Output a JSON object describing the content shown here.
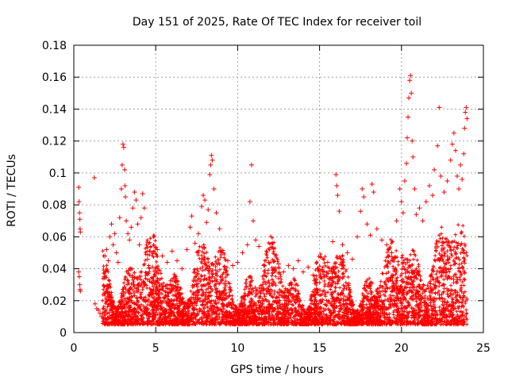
{
  "chart_data": {
    "type": "scatter",
    "title": "Day 151 of 2025, Rate Of TEC Index for receiver toil",
    "xlabel": "GPS time / hours",
    "ylabel": "ROTI / TECUs",
    "xlim": [
      0,
      25
    ],
    "ylim": [
      0,
      0.18
    ],
    "xticks": [
      0,
      5,
      10,
      15,
      20,
      25
    ],
    "xtick_labels": [
      "0",
      "5",
      "10",
      "15",
      "20",
      "25"
    ],
    "yticks": [
      0,
      0.02,
      0.04,
      0.06,
      0.08,
      0.1,
      0.12,
      0.14,
      0.16,
      0.18
    ],
    "ytick_labels": [
      "0",
      "0.02",
      "0.04",
      "0.06",
      "0.08",
      "0.1",
      "0.12",
      "0.14",
      "0.16",
      "0.18"
    ],
    "grid": true,
    "marker": "+",
    "color": "#ff0000",
    "series": [
      {
        "name": "ROTI",
        "points": [
          [
            0.3,
            0.091
          ],
          [
            0.32,
            0.082
          ],
          [
            0.35,
            0.075
          ],
          [
            0.37,
            0.071
          ],
          [
            0.38,
            0.065
          ],
          [
            0.4,
            0.063
          ],
          [
            0.3,
            0.038
          ],
          [
            0.33,
            0.035
          ],
          [
            0.36,
            0.03
          ],
          [
            0.38,
            0.027
          ],
          [
            0.4,
            0.026
          ],
          [
            1.25,
            0.097
          ],
          [
            1.3,
            0.018
          ],
          [
            1.4,
            0.015
          ],
          [
            1.5,
            0.014
          ],
          [
            1.6,
            0.012
          ],
          [
            1.7,
            0.01
          ],
          [
            1.8,
            0.009
          ],
          [
            1.85,
            0.035
          ],
          [
            1.9,
            0.048
          ],
          [
            2.0,
            0.052
          ],
          [
            2.1,
            0.045
          ],
          [
            2.2,
            0.06
          ],
          [
            2.3,
            0.068
          ],
          [
            2.4,
            0.055
          ],
          [
            2.5,
            0.062
          ],
          [
            2.6,
            0.05
          ],
          [
            2.7,
            0.044
          ],
          [
            2.8,
            0.072
          ],
          [
            2.9,
            0.09
          ],
          [
            2.95,
            0.105
          ],
          [
            3.0,
            0.118
          ],
          [
            3.05,
            0.116
          ],
          [
            3.1,
            0.102
          ],
          [
            3.12,
            0.092
          ],
          [
            3.15,
            0.085
          ],
          [
            3.2,
            0.07
          ],
          [
            3.3,
            0.062
          ],
          [
            3.4,
            0.058
          ],
          [
            3.5,
            0.066
          ],
          [
            3.6,
            0.078
          ],
          [
            3.7,
            0.088
          ],
          [
            3.8,
            0.083
          ],
          [
            3.9,
            0.068
          ],
          [
            4.0,
            0.055
          ],
          [
            4.1,
            0.072
          ],
          [
            4.2,
            0.087
          ],
          [
            4.3,
            0.078
          ],
          [
            4.5,
            0.046
          ],
          [
            4.8,
            0.041
          ],
          [
            5.1,
            0.052
          ],
          [
            5.4,
            0.048
          ],
          [
            5.7,
            0.044
          ],
          [
            6.0,
            0.051
          ],
          [
            6.3,
            0.045
          ],
          [
            6.6,
            0.04
          ],
          [
            6.9,
            0.052
          ],
          [
            7.1,
            0.066
          ],
          [
            7.2,
            0.073
          ],
          [
            7.4,
            0.056
          ],
          [
            7.6,
            0.062
          ],
          [
            7.8,
            0.079
          ],
          [
            7.9,
            0.086
          ],
          [
            8.0,
            0.083
          ],
          [
            8.1,
            0.069
          ],
          [
            8.2,
            0.077
          ],
          [
            8.3,
            0.099
          ],
          [
            8.35,
            0.105
          ],
          [
            8.4,
            0.111
          ],
          [
            8.45,
            0.108
          ],
          [
            8.55,
            0.09
          ],
          [
            8.7,
            0.075
          ],
          [
            8.9,
            0.065
          ],
          [
            9.1,
            0.05
          ],
          [
            9.4,
            0.045
          ],
          [
            9.7,
            0.042
          ],
          [
            10.0,
            0.044
          ],
          [
            10.3,
            0.05
          ],
          [
            10.6,
            0.055
          ],
          [
            10.75,
            0.082
          ],
          [
            10.85,
            0.105
          ],
          [
            10.95,
            0.07
          ],
          [
            11.1,
            0.058
          ],
          [
            11.3,
            0.054
          ],
          [
            11.6,
            0.042
          ],
          [
            11.9,
            0.044
          ],
          [
            12.2,
            0.04
          ],
          [
            12.5,
            0.043
          ],
          [
            12.8,
            0.038
          ],
          [
            13.1,
            0.042
          ],
          [
            13.4,
            0.04
          ],
          [
            13.7,
            0.045
          ],
          [
            14.0,
            0.038
          ],
          [
            14.3,
            0.041
          ],
          [
            14.6,
            0.036
          ],
          [
            14.9,
            0.04
          ],
          [
            15.2,
            0.038
          ],
          [
            15.5,
            0.044
          ],
          [
            15.8,
            0.057
          ],
          [
            16.0,
            0.099
          ],
          [
            16.05,
            0.092
          ],
          [
            16.1,
            0.086
          ],
          [
            16.2,
            0.076
          ],
          [
            16.4,
            0.055
          ],
          [
            16.7,
            0.05
          ],
          [
            17.0,
            0.046
          ],
          [
            17.3,
            0.06
          ],
          [
            17.5,
            0.076
          ],
          [
            17.6,
            0.09
          ],
          [
            17.7,
            0.085
          ],
          [
            17.9,
            0.068
          ],
          [
            18.1,
            0.061
          ],
          [
            18.2,
            0.093
          ],
          [
            18.3,
            0.088
          ],
          [
            18.5,
            0.065
          ],
          [
            18.8,
            0.058
          ],
          [
            19.1,
            0.055
          ],
          [
            19.4,
            0.05
          ],
          [
            19.7,
            0.07
          ],
          [
            19.9,
            0.09
          ],
          [
            20.0,
            0.082
          ],
          [
            20.1,
            0.075
          ],
          [
            20.2,
            0.095
          ],
          [
            20.3,
            0.106
          ],
          [
            20.35,
            0.122
          ],
          [
            20.4,
            0.135
          ],
          [
            20.45,
            0.147
          ],
          [
            20.5,
            0.158
          ],
          [
            20.55,
            0.161
          ],
          [
            20.6,
            0.15
          ],
          [
            20.65,
            0.12
          ],
          [
            20.7,
            0.11
          ],
          [
            20.8,
            0.09
          ],
          [
            20.9,
            0.074
          ],
          [
            21.1,
            0.078
          ],
          [
            21.3,
            0.07
          ],
          [
            21.5,
            0.082
          ],
          [
            21.7,
            0.092
          ],
          [
            21.9,
            0.086
          ],
          [
            22.0,
            0.102
          ],
          [
            22.2,
            0.117
          ],
          [
            22.3,
            0.141
          ],
          [
            22.4,
            0.098
          ],
          [
            22.6,
            0.088
          ],
          [
            22.8,
            0.095
          ],
          [
            23.0,
            0.108
          ],
          [
            23.1,
            0.118
          ],
          [
            23.2,
            0.125
          ],
          [
            23.3,
            0.114
          ],
          [
            23.4,
            0.098
          ],
          [
            23.5,
            0.09
          ],
          [
            23.6,
            0.105
          ],
          [
            23.7,
            0.096
          ],
          [
            23.8,
            0.112
          ],
          [
            23.85,
            0.128
          ],
          [
            23.9,
            0.138
          ],
          [
            23.95,
            0.141
          ],
          [
            24.0,
            0.134
          ]
        ]
      }
    ]
  }
}
